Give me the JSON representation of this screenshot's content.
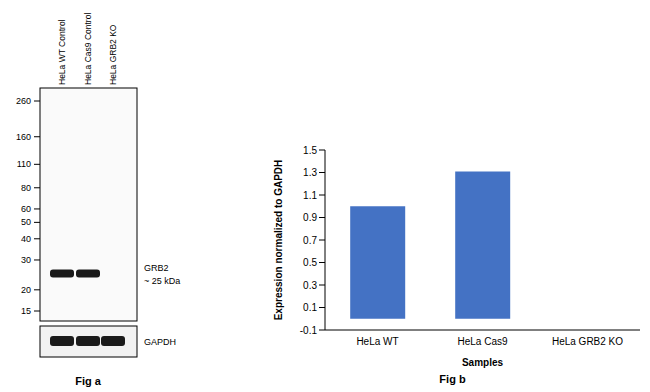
{
  "chart_data": {
    "type": "bar",
    "caption": "Fig b",
    "categories": [
      "HeLa WT",
      "HeLa Cas9",
      "HeLa GRB2 KO"
    ],
    "values": [
      1.0,
      1.31,
      0
    ],
    "color": "#4472c4",
    "ylim": [
      -0.1,
      1.5
    ],
    "yticks": [
      -0.1,
      0.1,
      0.3,
      0.5,
      0.7,
      0.9,
      1.1,
      1.3,
      1.5
    ],
    "xlabel": "Samples",
    "ylabel": "Expression  normalized to GAPDH",
    "grid": false
  },
  "blot": {
    "caption": "Fig a",
    "lanes": [
      "HeLa WT Control",
      "HeLa Cas9 Control",
      "HeLa GRB2 KO"
    ],
    "markers_kda": [
      260,
      160,
      110,
      80,
      60,
      50,
      40,
      30,
      20,
      15
    ],
    "target": {
      "label": "GRB2",
      "size_label": "~ 25 kDa",
      "kda": 25,
      "detected": [
        true,
        true,
        false
      ]
    },
    "loading_control": {
      "label": "GAPDH",
      "detected": [
        true,
        true,
        true
      ]
    }
  }
}
